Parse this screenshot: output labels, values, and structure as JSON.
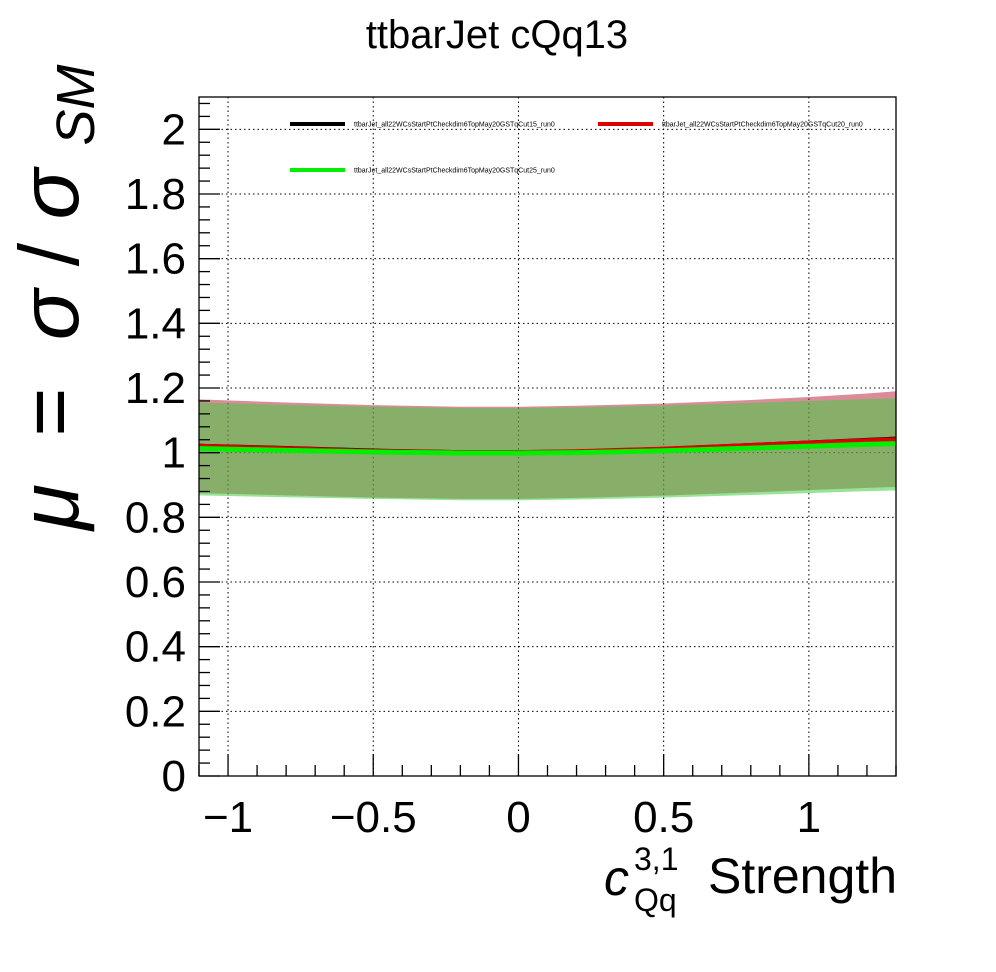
{
  "chart_data": {
    "type": "line",
    "title": "ttbarJet cQq13",
    "ylabel": {
      "mu": "μ",
      "eq": "=",
      "sigma": "σ",
      "slash": "/",
      "sub": "SM"
    },
    "xlabel": {
      "c": "c",
      "sup": "3,1",
      "sub": "Qq",
      "rest": "Strength"
    },
    "xlim": [
      -1.1,
      1.3
    ],
    "ylim": [
      0,
      2.1
    ],
    "x_ticks": [
      -1,
      -0.5,
      0,
      0.5,
      1
    ],
    "x_tick_labels": [
      "−1",
      "−0.5",
      "0",
      "0.5",
      "1"
    ],
    "y_ticks": [
      0,
      0.2,
      0.4,
      0.6,
      0.8,
      1,
      1.2,
      1.4,
      1.6,
      1.8,
      2
    ],
    "y_tick_labels": [
      "0",
      "0.2",
      "0.4",
      "0.6",
      "0.8",
      "1",
      "1.2",
      "1.4",
      "1.6",
      "1.8",
      "2"
    ],
    "grid": true,
    "legend_position": "top",
    "x": [
      -1.1,
      -0.8,
      -0.5,
      -0.2,
      0,
      0.2,
      0.5,
      0.8,
      1.0,
      1.2,
      1.3
    ],
    "series": [
      {
        "name": "ttbarJet_all22WCsStartPtCheckdim6TopMay20GSTqCut15_run0",
        "color": "#000000",
        "values": [
          1.02,
          1.013,
          1.005,
          1.0,
          1.0,
          1.002,
          1.01,
          1.022,
          1.03,
          1.038,
          1.042
        ]
      },
      {
        "name": "ttbarJet_all22WCsStartPtCheckdim6TopMay20GSTqCut20_run0",
        "color": "#dd0000",
        "band_color": "#b00020",
        "values": [
          1.02,
          1.012,
          1.004,
          1.0,
          1.0,
          1.003,
          1.011,
          1.022,
          1.03,
          1.037,
          1.04
        ],
        "band_upper": [
          1.165,
          1.155,
          1.147,
          1.142,
          1.142,
          1.145,
          1.152,
          1.163,
          1.172,
          1.183,
          1.19
        ],
        "band_lower": [
          0.875,
          0.868,
          0.861,
          0.857,
          0.857,
          0.86,
          0.867,
          0.877,
          0.884,
          0.891,
          0.894
        ]
      },
      {
        "name": "ttbarJet_all22WCsStartPtCheckdim6TopMay20GSTqCut25_run0",
        "color": "#00ee00",
        "band_color": "#44cc44",
        "values": [
          1.013,
          1.007,
          1.002,
          0.999,
          0.999,
          1.0,
          1.006,
          1.014,
          1.02,
          1.026,
          1.028
        ],
        "band_upper": [
          1.155,
          1.148,
          1.142,
          1.138,
          1.138,
          1.14,
          1.146,
          1.154,
          1.16,
          1.166,
          1.168
        ],
        "band_lower": [
          0.868,
          0.862,
          0.857,
          0.853,
          0.853,
          0.855,
          0.861,
          0.869,
          0.875,
          0.881,
          0.883
        ]
      }
    ]
  }
}
